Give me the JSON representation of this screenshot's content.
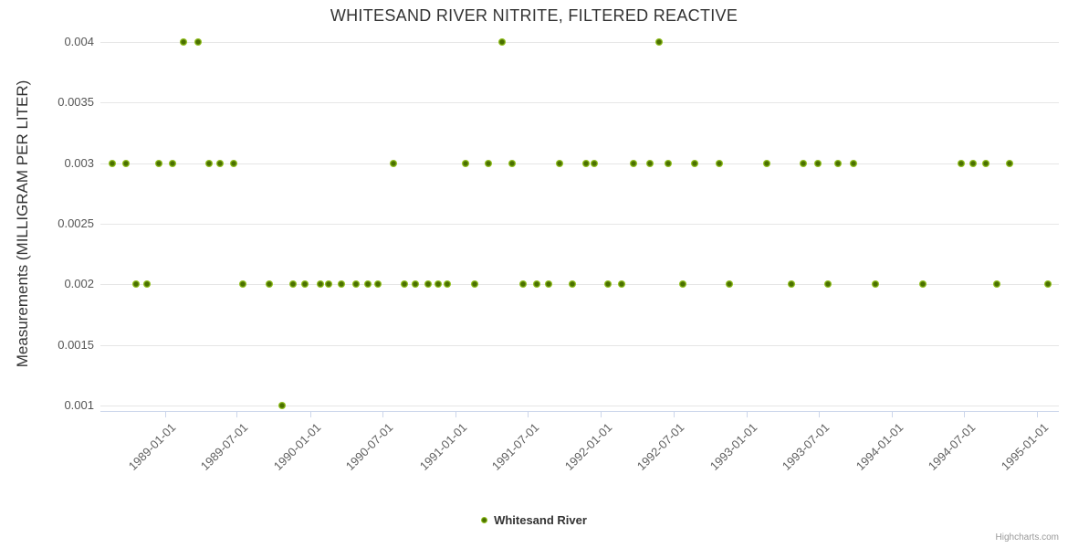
{
  "chart_data": {
    "type": "scatter",
    "title": "WHITESAND RIVER NITRITE, FILTERED REACTIVE",
    "xlabel": "",
    "ylabel": "Measurements (MILLIGRAM PER LITER)",
    "ylim": [
      0.001,
      0.004
    ],
    "y_ticks": [
      "0.004",
      "0.0035",
      "0.003",
      "0.0025",
      "0.002",
      "0.0015",
      "0.001"
    ],
    "x_ticks": [
      "1989-01-01",
      "1989-07-01",
      "1990-01-01",
      "1990-07-01",
      "1991-01-01",
      "1991-07-01",
      "1992-01-01",
      "1992-07-01",
      "1993-01-01",
      "1993-07-01",
      "1994-01-01",
      "1994-07-01",
      "1995-01-01"
    ],
    "grid": true,
    "legend_position": "bottom-center",
    "credits": "Highcharts.com",
    "colors": {
      "marker_outer": "#8fbe1d",
      "marker_inner": "#4a7000",
      "gridline": "#e6e6e6",
      "axis_tick": "#ccd6eb",
      "title_text": "#333333",
      "axis_label_text": "#606060",
      "credits_text": "#999999"
    },
    "series": [
      {
        "name": "Whitesand River",
        "points": [
          [
            "1989-02-18",
            0.004
          ],
          [
            "1989-03-25",
            0.004
          ],
          [
            "1991-04-27",
            0.004
          ],
          [
            "1992-05-25",
            0.004
          ],
          [
            "1988-08-22",
            0.003
          ],
          [
            "1988-09-25",
            0.003
          ],
          [
            "1988-12-16",
            0.003
          ],
          [
            "1989-01-21",
            0.003
          ],
          [
            "1989-04-22",
            0.003
          ],
          [
            "1989-05-20",
            0.003
          ],
          [
            "1989-06-23",
            0.003
          ],
          [
            "1990-07-28",
            0.003
          ],
          [
            "1991-01-27",
            0.003
          ],
          [
            "1991-03-25",
            0.003
          ],
          [
            "1991-05-24",
            0.003
          ],
          [
            "1991-09-19",
            0.003
          ],
          [
            "1991-11-24",
            0.003
          ],
          [
            "1991-12-16",
            0.003
          ],
          [
            "1992-03-22",
            0.003
          ],
          [
            "1992-05-04",
            0.003
          ],
          [
            "1992-06-19",
            0.003
          ],
          [
            "1992-08-24",
            0.003
          ],
          [
            "1992-10-25",
            0.003
          ],
          [
            "1993-02-20",
            0.003
          ],
          [
            "1993-05-22",
            0.003
          ],
          [
            "1993-06-28",
            0.003
          ],
          [
            "1993-08-19",
            0.003
          ],
          [
            "1993-09-27",
            0.003
          ],
          [
            "1994-06-23",
            0.003
          ],
          [
            "1994-07-24",
            0.003
          ],
          [
            "1994-08-25",
            0.003
          ],
          [
            "1994-10-22",
            0.003
          ],
          [
            "1988-10-20",
            0.002
          ],
          [
            "1988-11-18",
            0.002
          ],
          [
            "1989-07-16",
            0.002
          ],
          [
            "1989-09-21",
            0.002
          ],
          [
            "1989-11-20",
            0.002
          ],
          [
            "1989-12-18",
            0.002
          ],
          [
            "1990-01-26",
            0.002
          ],
          [
            "1990-02-16",
            0.002
          ],
          [
            "1990-03-21",
            0.002
          ],
          [
            "1990-04-27",
            0.002
          ],
          [
            "1990-05-26",
            0.002
          ],
          [
            "1990-06-20",
            0.002
          ],
          [
            "1990-08-25",
            0.002
          ],
          [
            "1990-09-23",
            0.002
          ],
          [
            "1990-10-24",
            0.002
          ],
          [
            "1990-11-19",
            0.002
          ],
          [
            "1990-12-12",
            0.002
          ],
          [
            "1991-02-19",
            0.002
          ],
          [
            "1991-06-20",
            0.002
          ],
          [
            "1991-07-25",
            0.002
          ],
          [
            "1991-08-22",
            0.002
          ],
          [
            "1991-10-21",
            0.002
          ],
          [
            "1992-01-19",
            0.002
          ],
          [
            "1992-02-22",
            0.002
          ],
          [
            "1992-07-24",
            0.002
          ],
          [
            "1992-11-19",
            0.002
          ],
          [
            "1993-04-23",
            0.002
          ],
          [
            "1993-07-24",
            0.002
          ],
          [
            "1993-11-20",
            0.002
          ],
          [
            "1994-03-20",
            0.002
          ],
          [
            "1994-09-20",
            0.002
          ],
          [
            "1995-01-27",
            0.002
          ],
          [
            "1989-10-22",
            0.001
          ]
        ]
      }
    ]
  }
}
